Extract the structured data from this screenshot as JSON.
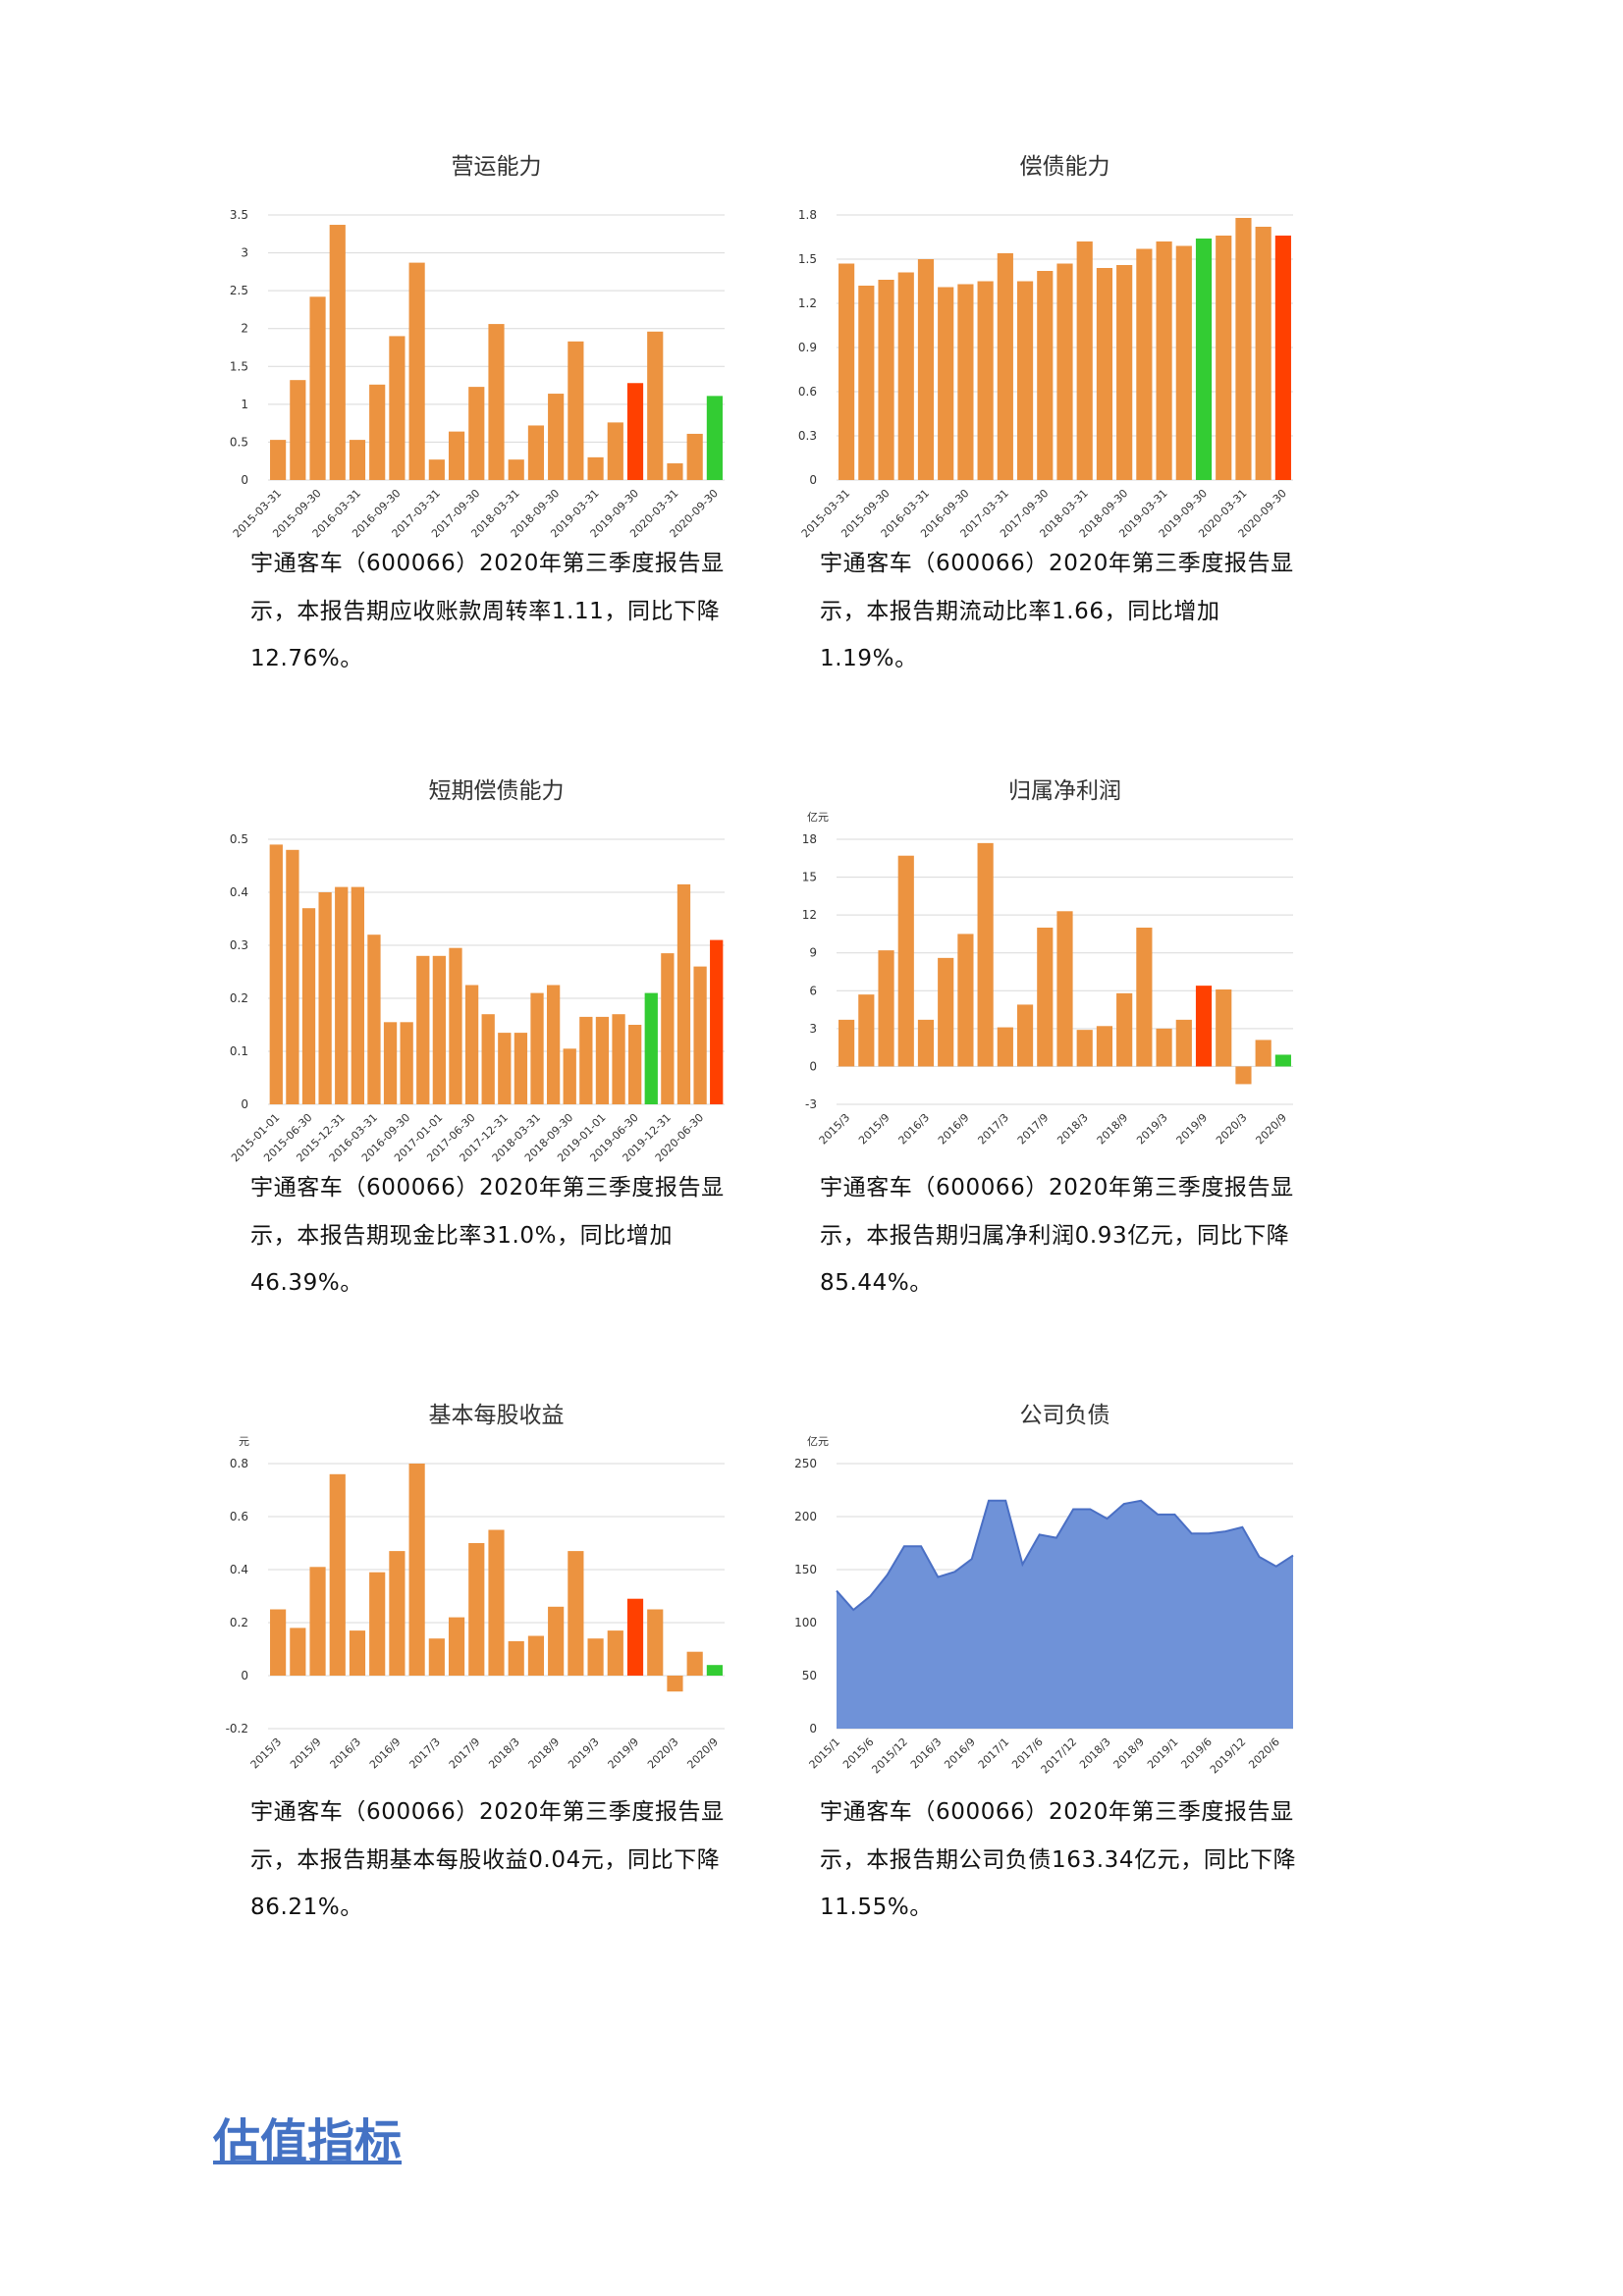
{
  "chart_data": [
    {
      "type": "bar",
      "title": "营运能力",
      "categories": [
        "2015-03-31",
        null,
        "2015-09-30",
        null,
        "2016-03-31",
        null,
        "2016-09-30",
        null,
        "2017-03-31",
        null,
        "2017-09-30",
        null,
        "2018-03-31",
        null,
        "2018-09-30",
        null,
        "2019-03-31",
        null,
        "2019-09-30",
        null,
        "2020-03-31",
        null,
        "2020-09-30"
      ],
      "values": [
        0.53,
        1.32,
        2.42,
        3.37,
        0.53,
        1.26,
        1.9,
        2.87,
        0.27,
        0.64,
        1.23,
        2.06,
        0.27,
        0.72,
        1.14,
        1.83,
        0.3,
        0.76,
        1.28,
        1.96,
        0.22,
        0.61,
        1.11
      ],
      "colors": [
        "#ec9340",
        "#ec9340",
        "#ec9340",
        "#ec9340",
        "#ec9340",
        "#ec9340",
        "#ec9340",
        "#ec9340",
        "#ec9340",
        "#ec9340",
        "#ec9340",
        "#ec9340",
        "#ec9340",
        "#ec9340",
        "#ec9340",
        "#ec9340",
        "#ec9340",
        "#ec9340",
        "#ff4000",
        "#ec9340",
        "#ec9340",
        "#ec9340",
        "#33cc33"
      ],
      "ylim": [
        0,
        3.5
      ],
      "yticks": [
        0,
        0.5,
        1,
        1.5,
        2,
        2.5,
        3,
        3.5
      ],
      "grid": true,
      "caption": "宇通客车（600066）2020年第三季度报告显示，本报告期应收账款周转率1.11，同比下降12.76%。"
    },
    {
      "type": "bar",
      "title": "偿债能力",
      "categories": [
        "2015-03-31",
        null,
        "2015-09-30",
        null,
        "2016-03-31",
        null,
        "2016-09-30",
        null,
        "2017-03-31",
        null,
        "2017-09-30",
        null,
        "2018-03-31",
        null,
        "2018-09-30",
        null,
        "2019-03-31",
        null,
        "2019-09-30",
        null,
        "2020-03-31",
        null,
        "2020-09-30"
      ],
      "values": [
        1.47,
        1.32,
        1.36,
        1.41,
        1.5,
        1.31,
        1.33,
        1.35,
        1.54,
        1.35,
        1.42,
        1.47,
        1.62,
        1.44,
        1.46,
        1.57,
        1.62,
        1.59,
        1.64,
        1.66,
        1.78,
        1.72,
        1.66
      ],
      "colors": [
        "#ec9340",
        "#ec9340",
        "#ec9340",
        "#ec9340",
        "#ec9340",
        "#ec9340",
        "#ec9340",
        "#ec9340",
        "#ec9340",
        "#ec9340",
        "#ec9340",
        "#ec9340",
        "#ec9340",
        "#ec9340",
        "#ec9340",
        "#ec9340",
        "#ec9340",
        "#ec9340",
        "#33cc33",
        "#ec9340",
        "#ec9340",
        "#ec9340",
        "#ff4000"
      ],
      "ylim": [
        0,
        1.8
      ],
      "yticks": [
        0,
        0.3,
        0.6,
        0.9,
        1.2,
        1.5,
        1.8
      ],
      "grid": true,
      "caption": "宇通客车（600066）2020年第三季度报告显示，本报告期流动比率1.66，同比增加1.19%。"
    },
    {
      "type": "bar",
      "title": "短期偿债能力",
      "categories": [
        "2015-01-01",
        null,
        "2015-06-30",
        null,
        "2015-12-31",
        null,
        "2016-03-31",
        null,
        "2016-09-30",
        null,
        "2017-01-01",
        null,
        "2017-06-30",
        null,
        "2017-12-31",
        null,
        "2018-03-31",
        null,
        "2018-09-30",
        null,
        "2019-01-01",
        null,
        "2019-06-30",
        null,
        "2019-12-31",
        null,
        "2020-06-30",
        null
      ],
      "values": [
        0.49,
        0.48,
        0.37,
        0.4,
        0.41,
        0.41,
        0.32,
        0.155,
        0.155,
        0.28,
        0.28,
        0.295,
        0.225,
        0.17,
        0.135,
        0.135,
        0.21,
        0.225,
        0.105,
        0.165,
        0.165,
        0.17,
        0.15,
        0.21,
        0.285,
        0.415,
        0.26,
        0.31
      ],
      "colors": [
        "#ec9340",
        "#ec9340",
        "#ec9340",
        "#ec9340",
        "#ec9340",
        "#ec9340",
        "#ec9340",
        "#ec9340",
        "#ec9340",
        "#ec9340",
        "#ec9340",
        "#ec9340",
        "#ec9340",
        "#ec9340",
        "#ec9340",
        "#ec9340",
        "#ec9340",
        "#ec9340",
        "#ec9340",
        "#ec9340",
        "#ec9340",
        "#ec9340",
        "#ec9340",
        "#33cc33",
        "#ec9340",
        "#ec9340",
        "#ec9340",
        "#ff4000"
      ],
      "ylim": [
        0,
        0.5
      ],
      "yticks": [
        0,
        0.1,
        0.2,
        0.3,
        0.4,
        0.5
      ],
      "grid": true,
      "caption": "宇通客车（600066）2020年第三季度报告显示，本报告期现金比率31.0%，同比增加46.39%。"
    },
    {
      "type": "bar",
      "title": "归属净利润",
      "unit": "亿元",
      "categories": [
        "2015/3",
        null,
        "2015/9",
        null,
        "2016/3",
        null,
        "2016/9",
        null,
        "2017/3",
        null,
        "2017/9",
        null,
        "2018/3",
        null,
        "2018/9",
        null,
        "2019/3",
        null,
        "2019/9",
        null,
        "2020/3",
        null,
        "2020/9"
      ],
      "values": [
        3.7,
        5.7,
        9.2,
        16.7,
        3.7,
        8.6,
        10.5,
        17.7,
        3.1,
        4.9,
        11.0,
        12.3,
        2.9,
        3.2,
        5.8,
        11.0,
        3.0,
        3.7,
        6.4,
        6.1,
        -1.4,
        2.1,
        0.93
      ],
      "colors": [
        "#ec9340",
        "#ec9340",
        "#ec9340",
        "#ec9340",
        "#ec9340",
        "#ec9340",
        "#ec9340",
        "#ec9340",
        "#ec9340",
        "#ec9340",
        "#ec9340",
        "#ec9340",
        "#ec9340",
        "#ec9340",
        "#ec9340",
        "#ec9340",
        "#ec9340",
        "#ec9340",
        "#ff4000",
        "#ec9340",
        "#ec9340",
        "#ec9340",
        "#33cc33"
      ],
      "ylim": [
        -3,
        18
      ],
      "yticks": [
        -3,
        0,
        3,
        6,
        9,
        12,
        15,
        18
      ],
      "grid": true,
      "caption": "宇通客车（600066）2020年第三季度报告显示，本报告期归属净利润0.93亿元，同比下降85.44%。"
    },
    {
      "type": "bar",
      "title": "基本每股收益",
      "unit": "元",
      "categories": [
        "2015/3",
        null,
        "2015/9",
        null,
        "2016/3",
        null,
        "2016/9",
        null,
        "2017/3",
        null,
        "2017/9",
        null,
        "2018/3",
        null,
        "2018/9",
        null,
        "2019/3",
        null,
        "2019/9",
        null,
        "2020/3",
        null,
        "2020/9"
      ],
      "values": [
        0.25,
        0.18,
        0.41,
        0.76,
        0.17,
        0.39,
        0.47,
        0.8,
        0.14,
        0.22,
        0.5,
        0.55,
        0.13,
        0.15,
        0.26,
        0.47,
        0.14,
        0.17,
        0.29,
        0.25,
        -0.06,
        0.09,
        0.04
      ],
      "colors": [
        "#ec9340",
        "#ec9340",
        "#ec9340",
        "#ec9340",
        "#ec9340",
        "#ec9340",
        "#ec9340",
        "#ec9340",
        "#ec9340",
        "#ec9340",
        "#ec9340",
        "#ec9340",
        "#ec9340",
        "#ec9340",
        "#ec9340",
        "#ec9340",
        "#ec9340",
        "#ec9340",
        "#ff4000",
        "#ec9340",
        "#ec9340",
        "#ec9340",
        "#33cc33"
      ],
      "ylim": [
        -0.2,
        0.8
      ],
      "yticks": [
        -0.2,
        0,
        0.2,
        0.4,
        0.6,
        0.8
      ],
      "grid": true,
      "caption": "宇通客车（600066）2020年第三季度报告显示，本报告期基本每股收益0.04元，同比下降86.21%。"
    },
    {
      "type": "area",
      "title": "公司负债",
      "unit": "亿元",
      "categories": [
        "2015/1",
        null,
        "2015/6",
        null,
        "2015/12",
        null,
        "2016/3",
        null,
        "2016/9",
        null,
        "2017/1",
        null,
        "2017/6",
        null,
        "2017/12",
        null,
        "2018/3",
        null,
        "2018/9",
        null,
        "2019/1",
        null,
        "2019/6",
        null,
        "2019/12",
        null,
        "2020/6",
        null
      ],
      "values": [
        130,
        112,
        125,
        145,
        172,
        172,
        143,
        148,
        160,
        215,
        215,
        155,
        183,
        180,
        207,
        207,
        198,
        212,
        215,
        202,
        202,
        184,
        184,
        186,
        190,
        162,
        153,
        163.34
      ],
      "color": "#6f92d8",
      "line_color": "#4a6fc4",
      "ylim": [
        0,
        250
      ],
      "yticks": [
        0,
        50,
        100,
        150,
        200,
        250
      ],
      "grid": true,
      "caption": "宇通客车（600066）2020年第三季度报告显示，本报告期公司负债163.34亿元，同比下降11.55%。"
    }
  ],
  "heading": "估值指标"
}
